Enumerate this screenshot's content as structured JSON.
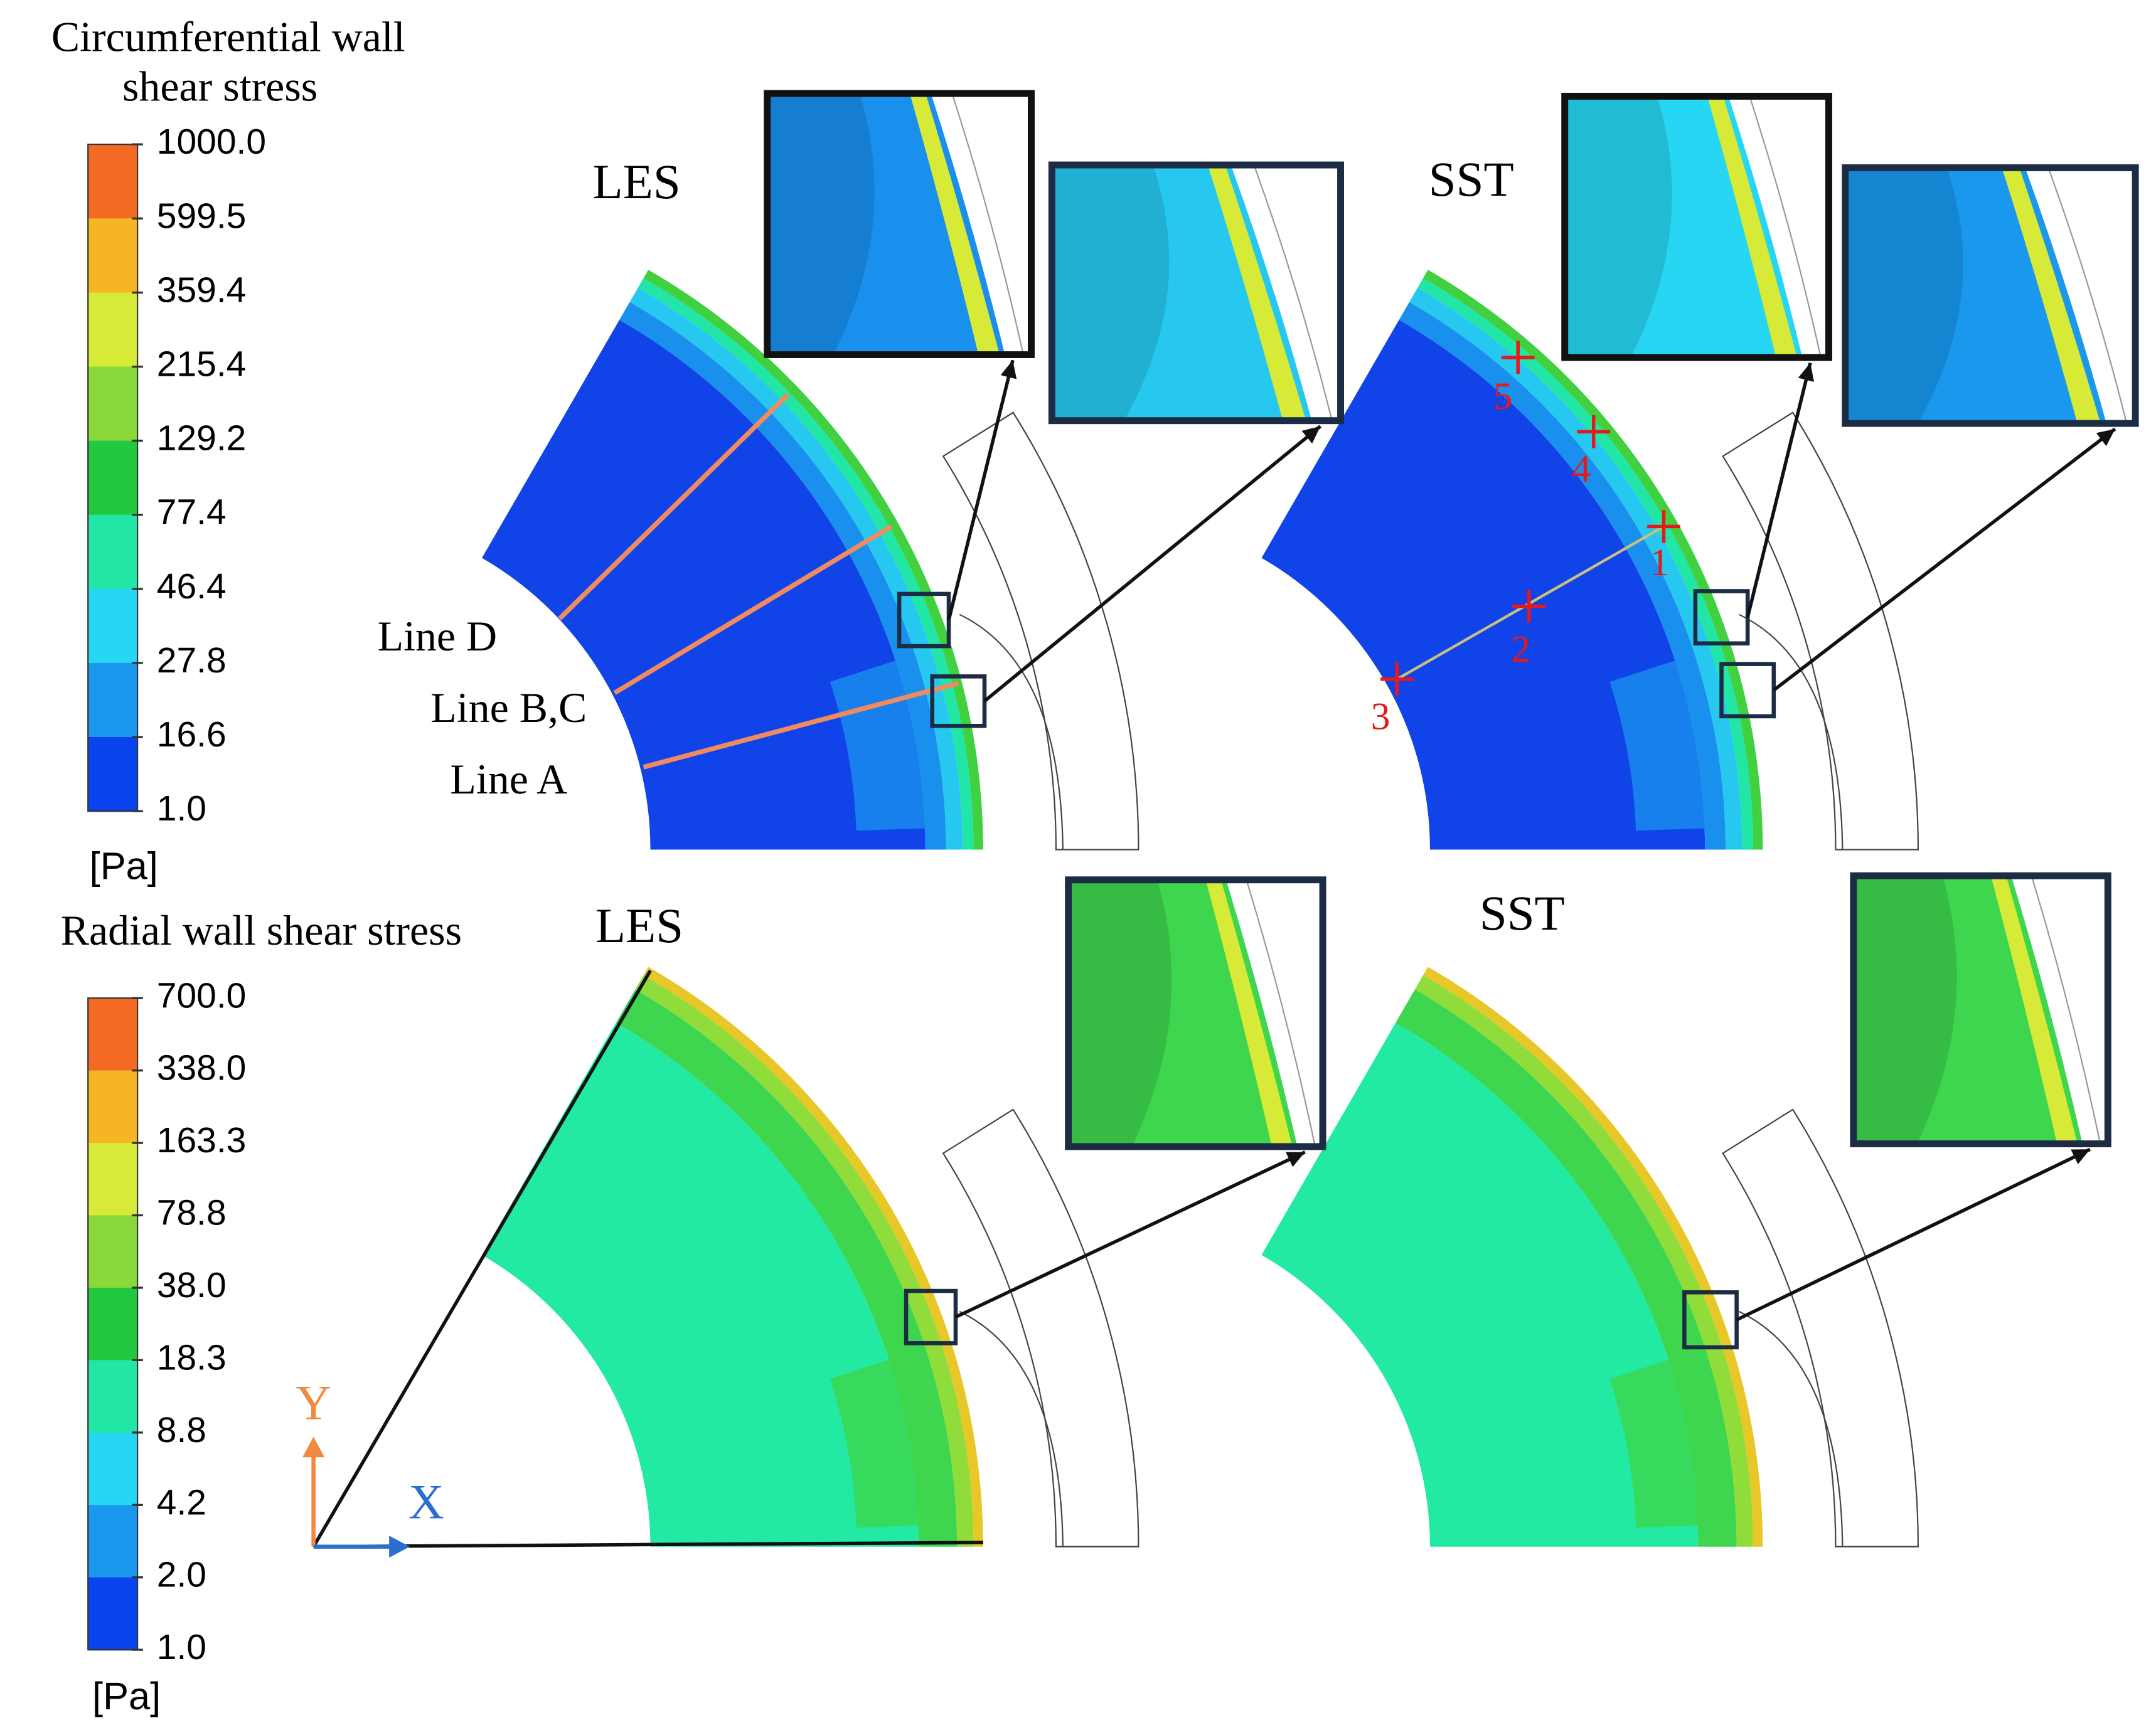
{
  "colorbars": [
    {
      "title": [
        "Circumferential wall",
        "shear stress"
      ],
      "ticks": [
        "1000.0",
        "599.5",
        "359.4",
        "215.4",
        "129.2",
        "77.4",
        "46.4",
        "27.8",
        "16.6",
        "1.0"
      ],
      "unit": "[Pa]"
    },
    {
      "title": [
        "Radial wall shear stress"
      ],
      "ticks": [
        "700.0",
        "338.0",
        "163.3",
        "78.8",
        "38.0",
        "18.3",
        "8.8",
        "4.2",
        "2.0",
        "1.0"
      ],
      "unit": "[Pa]"
    }
  ],
  "panels": [
    "LES",
    "SST",
    "LES",
    "SST"
  ],
  "lines": [
    "Line D",
    "Line B,C",
    "Line A"
  ],
  "points": [
    "1",
    "2",
    "3",
    "4",
    "5"
  ],
  "axes": {
    "x": "X",
    "y": "Y"
  }
}
